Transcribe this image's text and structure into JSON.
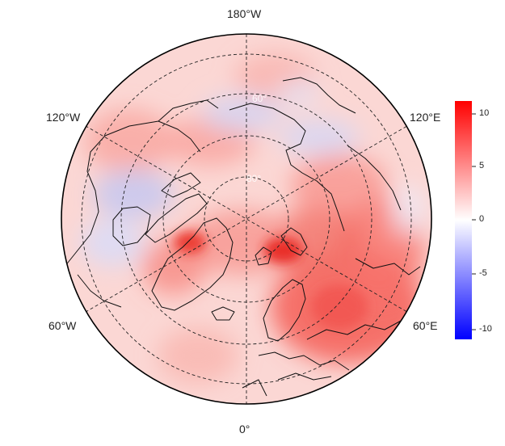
{
  "map": {
    "projection": "north polar stereographic",
    "longitude_labels": {
      "top": "180°W",
      "bottom": "0°",
      "upper_left": "120°W",
      "upper_right": "120°E",
      "lower_left": "60°W",
      "lower_right": "60°E"
    },
    "latitude_labels": [
      "60°",
      "80°"
    ],
    "graticule_style": "dashed",
    "colorbar": {
      "ticks": [
        "10",
        "5",
        "0",
        "-5",
        "-10"
      ],
      "range": [
        -11,
        11
      ],
      "colors": {
        "max": "#ff0000",
        "mid": "#ffffff",
        "min": "#0000ff"
      }
    }
  }
}
